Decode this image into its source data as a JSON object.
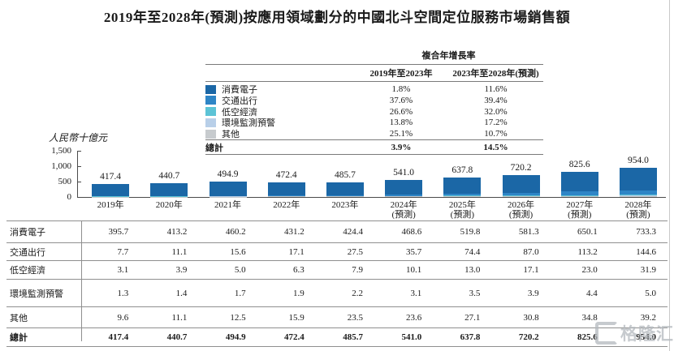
{
  "title": "2019年至2028年(預測)按應用領域劃分的中國北斗空間定位服務市場銷售額",
  "cagr": {
    "header": "複合年增長率",
    "col1": "2019年至2023年",
    "col2": "2023年至2028年(預測)",
    "rows": [
      {
        "label": "消費電子",
        "values": [
          "1.8%",
          "11.6%"
        ]
      },
      {
        "label": "交通出行",
        "values": [
          "37.6%",
          "39.4%"
        ]
      },
      {
        "label": "低空經濟",
        "values": [
          "26.6%",
          "32.0%"
        ]
      },
      {
        "label": "環境監測預警",
        "values": [
          "13.8%",
          "17.2%"
        ]
      },
      {
        "label": "其他",
        "values": [
          "25.1%",
          "10.7%"
        ]
      }
    ],
    "total": {
      "label": "總計",
      "values": [
        "3.9%",
        "14.5%"
      ]
    }
  },
  "chart_data": {
    "type": "bar",
    "stacked": true,
    "ylabel": "人民幣十億元",
    "ylim": [
      0,
      1500
    ],
    "yticks": [
      "1,500",
      "1,000",
      "500",
      "0"
    ],
    "categories": [
      "2019年",
      "2020年",
      "2021年",
      "2022年",
      "2023年",
      "2024年",
      "2025年",
      "2026年",
      "2027年",
      "2028年"
    ],
    "forecast_note": "(預測)",
    "forecast_from_index": 5,
    "totals": [
      "417.4",
      "440.7",
      "494.9",
      "472.4",
      "485.7",
      "541.0",
      "637.8",
      "720.2",
      "825.6",
      "954.0"
    ],
    "series": [
      {
        "name": "消費電子",
        "color": "#1b67a6",
        "values": [
          395.7,
          413.2,
          460.2,
          431.2,
          424.4,
          468.6,
          519.8,
          581.3,
          650.1,
          733.3
        ]
      },
      {
        "name": "交通出行",
        "color": "#2e85c6",
        "values": [
          7.7,
          11.1,
          15.6,
          17.1,
          27.5,
          35.7,
          74.4,
          87.0,
          113.2,
          144.6
        ]
      },
      {
        "name": "低空經濟",
        "color": "#5cc3d6",
        "values": [
          3.1,
          3.9,
          5.0,
          6.3,
          7.9,
          10.1,
          13.0,
          17.1,
          23.0,
          31.9
        ]
      },
      {
        "name": "環境監測預警",
        "color": "#b8cfe8",
        "values": [
          1.3,
          1.4,
          1.7,
          1.9,
          2.2,
          3.1,
          3.5,
          3.9,
          4.4,
          5.0
        ]
      },
      {
        "name": "其他",
        "color": "#c7cbce",
        "values": [
          9.6,
          11.1,
          12.5,
          15.9,
          23.5,
          23.6,
          27.1,
          30.8,
          34.8,
          39.2
        ]
      }
    ],
    "total_label": "總計"
  },
  "watermark": "格隆汇"
}
